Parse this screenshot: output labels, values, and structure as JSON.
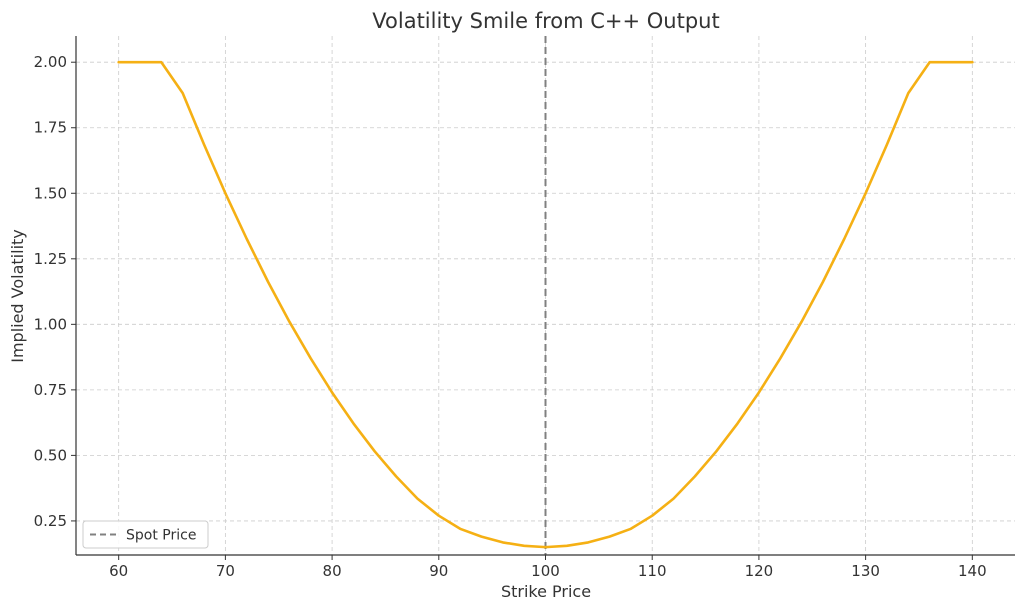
{
  "chart_data": {
    "type": "line",
    "title": "Volatility Smile from C++ Output",
    "xlabel": "Strike Price",
    "ylabel": "Implied Volatility",
    "xlim": [
      56,
      144
    ],
    "ylim": [
      0.12,
      2.1
    ],
    "xticks": [
      60,
      70,
      80,
      90,
      100,
      110,
      120,
      130,
      140
    ],
    "yticks": [
      0.25,
      0.5,
      0.75,
      1.0,
      1.25,
      1.5,
      1.75,
      2.0
    ],
    "xtick_labels": [
      "60",
      "70",
      "80",
      "90",
      "100",
      "110",
      "120",
      "130",
      "140"
    ],
    "ytick_labels": [
      "0.25",
      "0.50",
      "0.75",
      "1.00",
      "1.25",
      "1.50",
      "1.75",
      "2.00"
    ],
    "grid": true,
    "legend_position": "lower-left",
    "series": [
      {
        "color": "#f5b014",
        "x": [
          60,
          62,
          64,
          66,
          68,
          70,
          72,
          74,
          76,
          78,
          80,
          82,
          84,
          86,
          88,
          90,
          92,
          94,
          96,
          98,
          100,
          102,
          104,
          106,
          108,
          110,
          112,
          114,
          116,
          118,
          120,
          122,
          124,
          126,
          128,
          130,
          132,
          134,
          136,
          138,
          140
        ],
        "y": [
          2.0,
          2.0,
          2.0,
          1.882,
          1.686,
          1.5,
          1.326,
          1.162,
          1.01,
          0.87,
          0.74,
          0.622,
          0.515,
          0.42,
          0.335,
          0.27,
          0.22,
          0.19,
          0.168,
          0.155,
          0.15,
          0.155,
          0.168,
          0.19,
          0.22,
          0.27,
          0.335,
          0.42,
          0.515,
          0.622,
          0.74,
          0.87,
          1.01,
          1.162,
          1.326,
          1.5,
          1.686,
          1.882,
          2.0,
          2.0,
          2.0
        ]
      }
    ],
    "reference_line": {
      "name": "Spot Price",
      "x": 100,
      "color": "#808080",
      "style": "dashed"
    }
  }
}
